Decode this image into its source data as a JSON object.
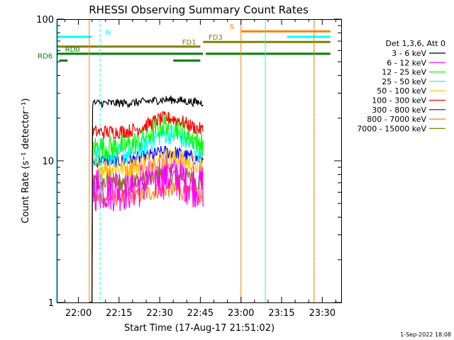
{
  "chart_data": {
    "type": "line",
    "title": "RHESSI Observing Summary Count Rates",
    "xlabel": "Start Time (17-Aug-17 21:51:02)",
    "ylabel": "Count Rate (s⁻¹ detector⁻¹)",
    "yscale": "log",
    "ylim": [
      1,
      100
    ],
    "xlim_minutes": [
      -8,
      97
    ],
    "x_unit": "minutes after 22:00 UT",
    "x_ticks": [
      {
        "t": 0,
        "label": "22:00"
      },
      {
        "t": 15,
        "label": "22:15"
      },
      {
        "t": 30,
        "label": "22:30"
      },
      {
        "t": 45,
        "label": "22:45"
      },
      {
        "t": 60,
        "label": "23:00"
      },
      {
        "t": 75,
        "label": "23:15"
      },
      {
        "t": 90,
        "label": "23:30"
      }
    ],
    "y_ticks": [
      {
        "v": 1,
        "label": "1"
      },
      {
        "v": 10,
        "label": "10"
      },
      {
        "v": 100,
        "label": "100"
      }
    ],
    "legend_title": "Det 1,3,6, Att 0",
    "legend_position": "right",
    "data_window_minutes": [
      4,
      46
    ],
    "series": [
      {
        "name": "3 - 6 keV",
        "color": "#000000",
        "base": 25.5,
        "rise": 1.5,
        "noise": 0.06
      },
      {
        "name": "6 - 12 keV",
        "color": "#ff00ff",
        "base": 6.5,
        "rise": 1.5,
        "noise": 0.35
      },
      {
        "name": "12 - 25 keV",
        "color": "#00ff00",
        "base": 12.5,
        "rise": 5.5,
        "noise": 0.18
      },
      {
        "name": "25 - 50 keV",
        "color": "#00ffff",
        "base": 11,
        "rise": 4.5,
        "noise": 0.15
      },
      {
        "name": "50 - 100 keV",
        "color": "#ffc000",
        "base": 9,
        "rise": 1.5,
        "noise": 0.15
      },
      {
        "name": "100 - 300 keV",
        "color": "#ff0000",
        "base": 16,
        "rise": 4,
        "noise": 0.1
      },
      {
        "name": "300 - 800 keV",
        "color": "#0000ff",
        "base": 10,
        "rise": 1.5,
        "noise": 0.1
      },
      {
        "name": "800 - 7000 keV",
        "color": "#ff8000",
        "base": 5.5,
        "rise": 0.8,
        "noise": 0.12
      },
      {
        "name": "7000 - 15000 keV",
        "color": "#808000",
        "base": 7,
        "rise": 1,
        "noise": 0.15
      }
    ],
    "state_bars": [
      {
        "label": "N",
        "color": "#00ffff",
        "y": 75,
        "segments": [
          [
            -8,
            5
          ],
          [
            77,
            93
          ]
        ],
        "label_t": 9,
        "label_side": "right"
      },
      {
        "label": "S",
        "color": "#ff8000",
        "y": 82,
        "segments": [
          [
            60,
            93
          ]
        ],
        "label_t": 58,
        "label_side": "left"
      },
      {
        "label": "FD1",
        "color": "#808000",
        "y": 64,
        "segments": [
          [
            -8,
            45
          ]
        ],
        "label_t": 44,
        "label_side": "left"
      },
      {
        "label": "FD3",
        "color": "#808000",
        "y": 69,
        "segments": [
          [
            46,
            93
          ]
        ],
        "label_t": 47,
        "label_side": "right"
      },
      {
        "label": "RD0",
        "color": "#008000",
        "y": 57,
        "segments": [
          [
            -8,
            46
          ],
          [
            47,
            93
          ]
        ],
        "label_t": -6,
        "label_side": "right"
      },
      {
        "label": "RD6",
        "color": "#008000",
        "y": 51,
        "segments": [
          [
            -7,
            -4
          ],
          [
            35,
            45
          ]
        ],
        "label_t": -9,
        "label_side": "left"
      }
    ],
    "vertical_lines": [
      {
        "t": -8,
        "color": "#00ffff",
        "dashed": false
      },
      {
        "t": 4,
        "color": "#ff8000",
        "dashed": false
      },
      {
        "t": 8,
        "color": "#00ffff",
        "dashed": true
      },
      {
        "t": 60,
        "color": "#ff8000",
        "dashed": false
      },
      {
        "t": 69,
        "color": "#00ffff",
        "dashed": false
      },
      {
        "t": 87,
        "color": "#00ffff",
        "dashed": true
      },
      {
        "t": 87,
        "color": "#ff8000",
        "dashed": false
      }
    ],
    "grid": false
  },
  "footer_date": "1-Sep-2022 18:08"
}
